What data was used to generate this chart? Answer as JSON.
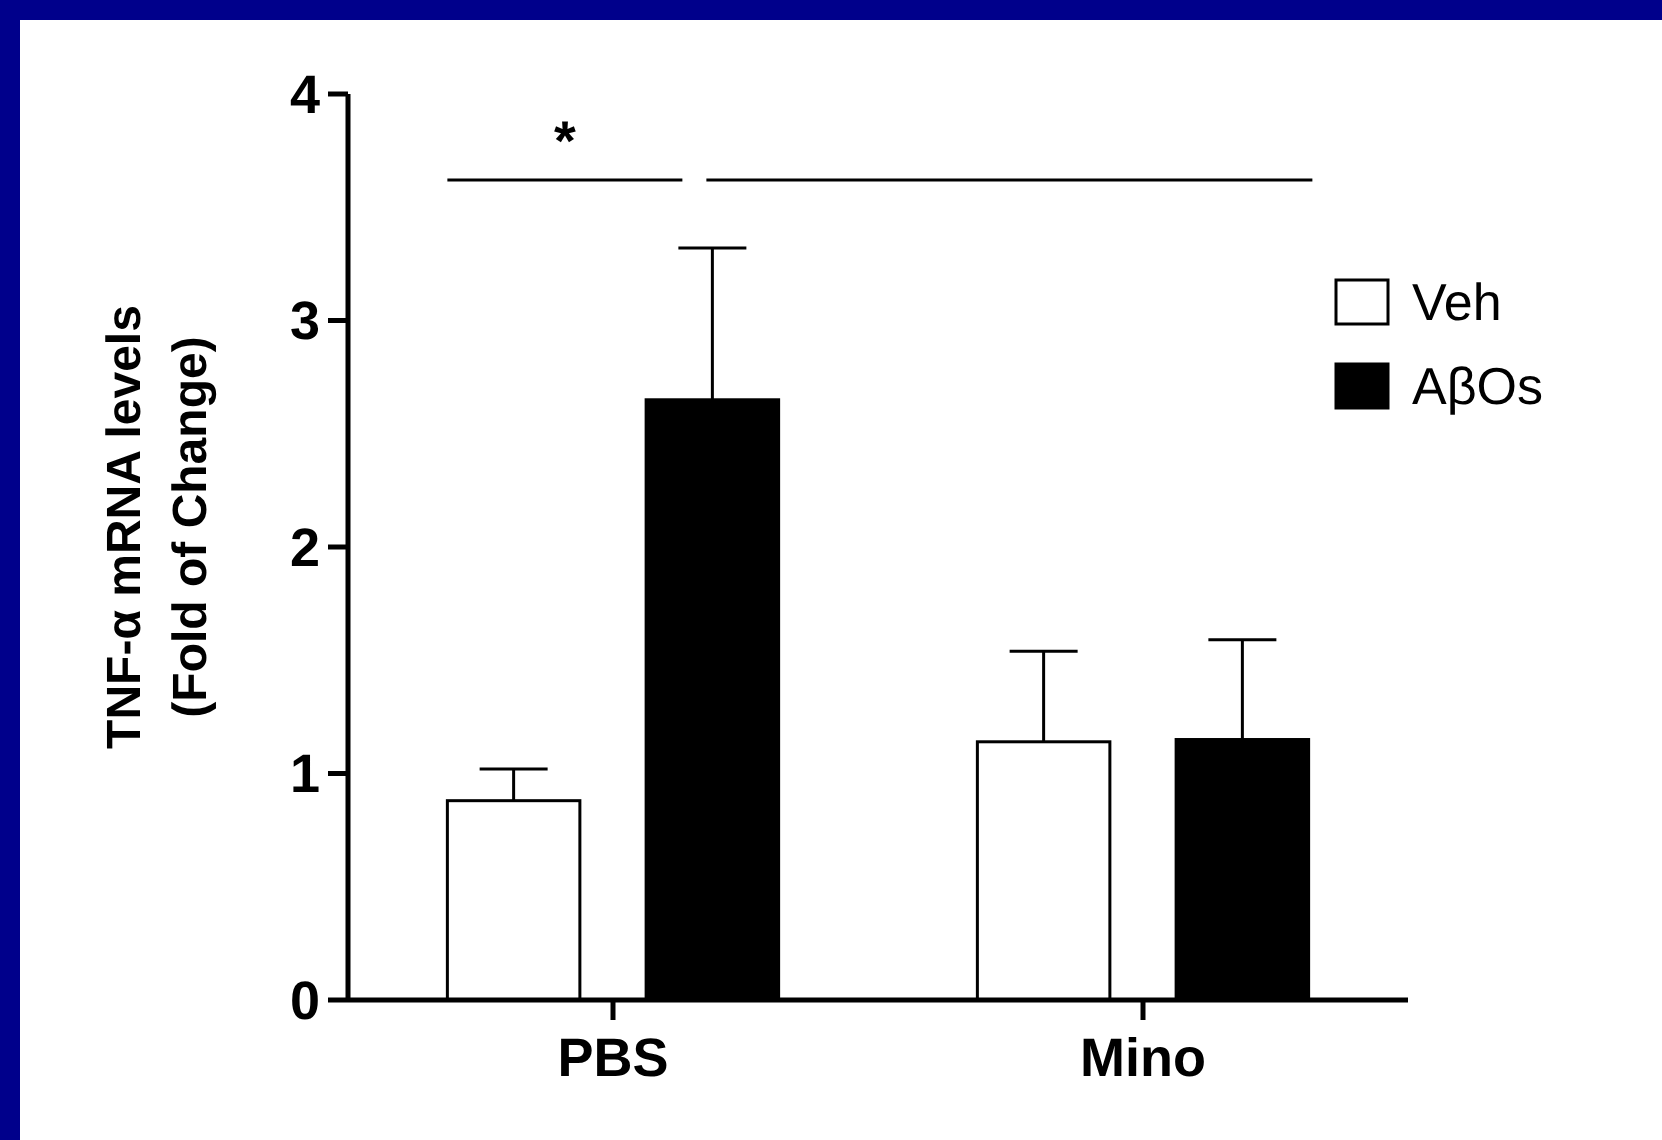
{
  "chart_data": {
    "type": "bar",
    "ylabel": "TNF-α mRNA levels\n(Fold of Change)",
    "categories": [
      "PBS",
      "Mino"
    ],
    "series": [
      {
        "name": "Veh",
        "color": "#ffffff",
        "values": [
          0.88,
          1.14
        ],
        "errors": [
          [
            0.88,
            1.02
          ],
          [
            1.14,
            1.54
          ]
        ]
      },
      {
        "name": "AβOs",
        "color": "#000000",
        "values": [
          2.65,
          1.15
        ],
        "errors": [
          [
            2.65,
            3.32
          ],
          [
            1.15,
            1.59
          ]
        ]
      }
    ],
    "ylim": [
      0,
      4
    ],
    "yticks": [
      0,
      1,
      2,
      3,
      4
    ],
    "grid": false,
    "legend": "top right",
    "annotations": [
      "*"
    ]
  }
}
